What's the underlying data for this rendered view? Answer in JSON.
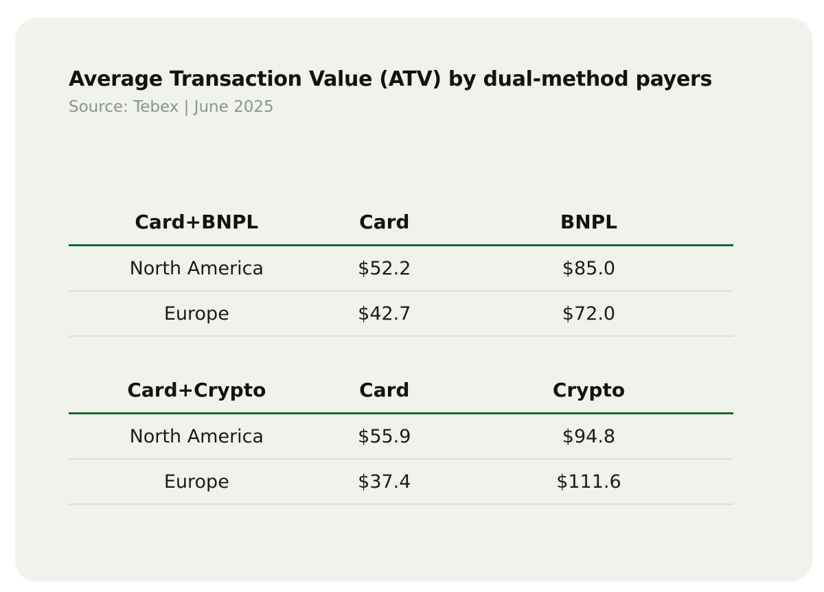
{
  "title": "Average Transaction Value (ATV) by dual-method payers",
  "source": "Source: Tebex | June 2025",
  "colors": {
    "page_bg": "#ffffff",
    "card_bg": "#eff3ec",
    "accent_green": "#1d6430",
    "row_divider": "#dbe0da",
    "subtitle_gray": "#8d938d",
    "text": "#121212"
  },
  "chart_data": [
    {
      "type": "table",
      "group": "Card+BNPL",
      "columns": [
        "Card+BNPL",
        "Card",
        "BNPL"
      ],
      "rows": [
        [
          "North America",
          "$52.2",
          "$85.0"
        ],
        [
          "Europe",
          "$42.7",
          "$72.0"
        ]
      ]
    },
    {
      "type": "table",
      "group": "Card+Crypto",
      "columns": [
        "Card+Crypto",
        "Card",
        "Crypto"
      ],
      "rows": [
        [
          "North America",
          "$55.9",
          "$94.8"
        ],
        [
          "Europe",
          "$37.4",
          "$111.6"
        ]
      ]
    }
  ]
}
